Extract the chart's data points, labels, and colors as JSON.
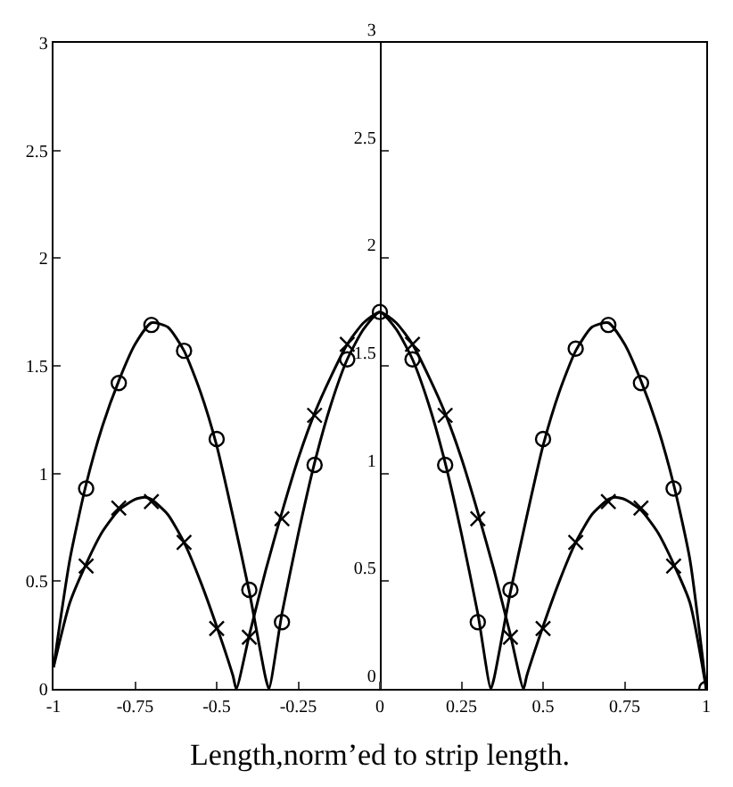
{
  "chart_data": {
    "type": "line",
    "xlabel": "Length,norm’ed to strip length.",
    "xlim": [
      -1,
      1
    ],
    "xticks": [
      -1,
      -0.75,
      -0.5,
      -0.25,
      0,
      0.25,
      0.5,
      0.75,
      1
    ],
    "ylim": [
      0,
      3
    ],
    "yticks": [
      0,
      0.5,
      1,
      1.5,
      2,
      2.5,
      3
    ],
    "y2lim": [
      0,
      3
    ],
    "y2ticks": [
      0,
      0.5,
      1,
      1.5,
      2,
      2.5,
      3
    ],
    "legend": false,
    "line_style": "solid",
    "series": [
      {
        "marker": "none",
        "color": "#000000",
        "x": [
          -1,
          -0.95,
          -0.9,
          -0.85,
          -0.8,
          -0.75,
          -0.7,
          -0.65,
          -0.6,
          -0.55,
          -0.5,
          -0.45,
          -0.4,
          -0.35,
          -0.34,
          -0.3,
          -0.25,
          -0.2,
          -0.15,
          -0.1,
          -0.05,
          0,
          0.05,
          0.1,
          0.15,
          0.2,
          0.25,
          0.3,
          0.34,
          0.35,
          0.4,
          0.45,
          0.5,
          0.55,
          0.6,
          0.65,
          0.7,
          0.75,
          0.8,
          0.85,
          0.9,
          0.95,
          1
        ],
        "values": [
          0.1,
          0.6,
          0.95,
          1.22,
          1.43,
          1.6,
          1.7,
          1.68,
          1.57,
          1.38,
          1.13,
          0.8,
          0.45,
          0.05,
          0,
          0.35,
          0.72,
          1.05,
          1.32,
          1.53,
          1.67,
          1.75,
          1.67,
          1.53,
          1.32,
          1.05,
          0.72,
          0.35,
          0,
          0.05,
          0.45,
          0.8,
          1.13,
          1.38,
          1.57,
          1.68,
          1.7,
          1.6,
          1.43,
          1.22,
          0.95,
          0.6,
          0
        ]
      },
      {
        "marker": "none",
        "color": "#000000",
        "x": [
          -1,
          -0.95,
          -0.9,
          -0.85,
          -0.8,
          -0.75,
          -0.72,
          -0.7,
          -0.65,
          -0.6,
          -0.55,
          -0.5,
          -0.45,
          -0.44,
          -0.4,
          -0.35,
          -0.3,
          -0.25,
          -0.2,
          -0.15,
          -0.1,
          -0.05,
          0,
          0.05,
          0.1,
          0.15,
          0.2,
          0.25,
          0.3,
          0.35,
          0.4,
          0.44,
          0.45,
          0.5,
          0.55,
          0.6,
          0.65,
          0.7,
          0.72,
          0.75,
          0.8,
          0.85,
          0.9,
          0.95,
          1
        ],
        "values": [
          0.1,
          0.4,
          0.58,
          0.73,
          0.83,
          0.88,
          0.89,
          0.88,
          0.81,
          0.68,
          0.5,
          0.29,
          0.06,
          0,
          0.25,
          0.55,
          0.82,
          1.07,
          1.28,
          1.45,
          1.6,
          1.7,
          1.75,
          1.7,
          1.6,
          1.45,
          1.28,
          1.07,
          0.82,
          0.55,
          0.25,
          0,
          0.06,
          0.29,
          0.5,
          0.68,
          0.81,
          0.88,
          0.89,
          0.88,
          0.83,
          0.73,
          0.58,
          0.4,
          0
        ]
      },
      {
        "type": "scatter",
        "marker": "circle",
        "color": "#000000",
        "x": [
          -0.9,
          -0.8,
          -0.7,
          -0.6,
          -0.5,
          -0.4,
          -0.3,
          -0.2,
          -0.1,
          0,
          0.1,
          0.2,
          0.3,
          0.4,
          0.5,
          0.6,
          0.7,
          0.8,
          0.9,
          1
        ],
        "values": [
          0.93,
          1.42,
          1.69,
          1.57,
          1.16,
          0.46,
          0.31,
          1.04,
          1.53,
          1.75,
          1.53,
          1.04,
          0.31,
          0.46,
          1.16,
          1.58,
          1.69,
          1.42,
          0.93,
          0
        ]
      },
      {
        "type": "scatter",
        "marker": "cross",
        "color": "#000000",
        "x": [
          -0.9,
          -0.8,
          -0.7,
          -0.6,
          -0.5,
          -0.4,
          -0.3,
          -0.2,
          -0.1,
          0.1,
          0.2,
          0.3,
          0.4,
          0.5,
          0.6,
          0.7,
          0.8,
          0.9
        ],
        "values": [
          0.57,
          0.84,
          0.87,
          0.68,
          0.28,
          0.24,
          0.79,
          1.27,
          1.6,
          1.6,
          1.27,
          0.79,
          0.24,
          0.28,
          0.68,
          0.87,
          0.84,
          0.57
        ]
      }
    ]
  }
}
